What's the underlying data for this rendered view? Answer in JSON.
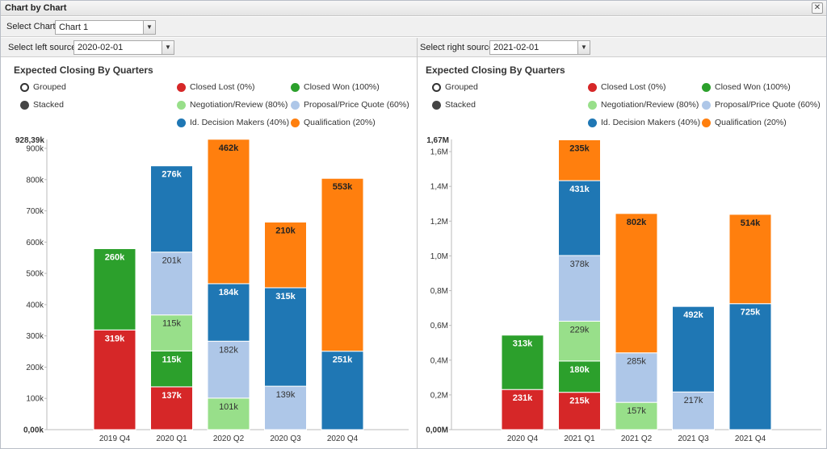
{
  "window": {
    "title": "Chart by Chart",
    "close_label": "✕"
  },
  "top": {
    "select_chart_label": "Select Chart:",
    "select_chart_value": "Chart 1"
  },
  "left": {
    "source_label": "Select left source:",
    "source_value": "2020-02-01"
  },
  "right": {
    "source_label": "Select right source:",
    "source_value": "2021-02-01"
  },
  "legend": {
    "grouped": "Grouped",
    "stacked": "Stacked",
    "series": [
      {
        "name": "Closed Lost (0%)",
        "color": "#d62728"
      },
      {
        "name": "Closed Won (100%)",
        "color": "#2ca02c"
      },
      {
        "name": "Negotiation/Review (80%)",
        "color": "#98df8a"
      },
      {
        "name": "Proposal/Price Quote (60%)",
        "color": "#aec7e8"
      },
      {
        "name": "Id. Decision Makers (40%)",
        "color": "#1f77b4"
      },
      {
        "name": "Qualification (20%)",
        "color": "#ff7f0e"
      }
    ]
  },
  "chart_data": [
    {
      "type": "bar",
      "stacked": true,
      "title": "Expected Closing By Quarters",
      "categories": [
        "2019 Q4",
        "2020 Q1",
        "2020 Q2",
        "2020 Q3",
        "2020 Q4"
      ],
      "ylim": [
        0,
        928390
      ],
      "ytop_label": "928,39k",
      "yticks": [
        0,
        100000,
        200000,
        300000,
        400000,
        500000,
        600000,
        700000,
        800000,
        900000
      ],
      "ytick_labels": [
        "0,00k",
        "100k",
        "200k",
        "300k",
        "400k",
        "500k",
        "600k",
        "700k",
        "800k",
        "900k"
      ],
      "series": [
        {
          "name": "Closed Lost (0%)",
          "values": [
            319000,
            137000,
            0,
            0,
            0
          ],
          "labels": [
            "319k",
            "137k",
            "",
            "",
            ""
          ]
        },
        {
          "name": "Closed Won (100%)",
          "values": [
            260000,
            115000,
            0,
            0,
            0
          ],
          "labels": [
            "260k",
            "115k",
            "",
            "",
            ""
          ]
        },
        {
          "name": "Negotiation/Review (80%)",
          "values": [
            0,
            115000,
            101000,
            0,
            0
          ],
          "labels": [
            "",
            "115k",
            "101k",
            "",
            ""
          ]
        },
        {
          "name": "Proposal/Price Quote (60%)",
          "values": [
            0,
            201000,
            182000,
            139000,
            0
          ],
          "labels": [
            "",
            "201k",
            "182k",
            "139k",
            ""
          ]
        },
        {
          "name": "Id. Decision Makers (40%)",
          "values": [
            0,
            276000,
            184000,
            315000,
            251000
          ],
          "labels": [
            "",
            "276k",
            "184k",
            "315k",
            "251k"
          ]
        },
        {
          "name": "Qualification (20%)",
          "values": [
            0,
            0,
            462000,
            210000,
            553000
          ],
          "labels": [
            "",
            "",
            "462k",
            "210k",
            "553k"
          ]
        }
      ]
    },
    {
      "type": "bar",
      "stacked": true,
      "title": "Expected Closing By Quarters",
      "categories": [
        "2020 Q4",
        "2021 Q1",
        "2021 Q2",
        "2021 Q3",
        "2021 Q4"
      ],
      "ylim": [
        0,
        1670000
      ],
      "ytop_label": "1,67M",
      "yticks": [
        0,
        200000,
        400000,
        600000,
        800000,
        1000000,
        1200000,
        1400000,
        1600000
      ],
      "ytick_labels": [
        "0,00M",
        "0,2M",
        "0,4M",
        "0,6M",
        "0,8M",
        "1,0M",
        "1,2M",
        "1,4M",
        "1,6M"
      ],
      "series": [
        {
          "name": "Closed Lost (0%)",
          "values": [
            231000,
            215000,
            0,
            0,
            0
          ],
          "labels": [
            "231k",
            "215k",
            "",
            "",
            ""
          ]
        },
        {
          "name": "Closed Won (100%)",
          "values": [
            313000,
            180000,
            0,
            0,
            0
          ],
          "labels": [
            "313k",
            "180k",
            "",
            "",
            ""
          ]
        },
        {
          "name": "Negotiation/Review (80%)",
          "values": [
            0,
            229000,
            157000,
            0,
            0
          ],
          "labels": [
            "",
            "229k",
            "157k",
            "",
            ""
          ]
        },
        {
          "name": "Proposal/Price Quote (60%)",
          "values": [
            0,
            378000,
            285000,
            217000,
            0
          ],
          "labels": [
            "",
            "378k",
            "285k",
            "217k",
            ""
          ]
        },
        {
          "name": "Id. Decision Makers (40%)",
          "values": [
            0,
            431000,
            0,
            492000,
            725000
          ],
          "labels": [
            "",
            "431k",
            "",
            "492k",
            "725k"
          ]
        },
        {
          "name": "Qualification (20%)",
          "values": [
            0,
            235000,
            802000,
            0,
            514000
          ],
          "labels": [
            "",
            "235k",
            "802k",
            "",
            "514k"
          ]
        }
      ]
    }
  ]
}
